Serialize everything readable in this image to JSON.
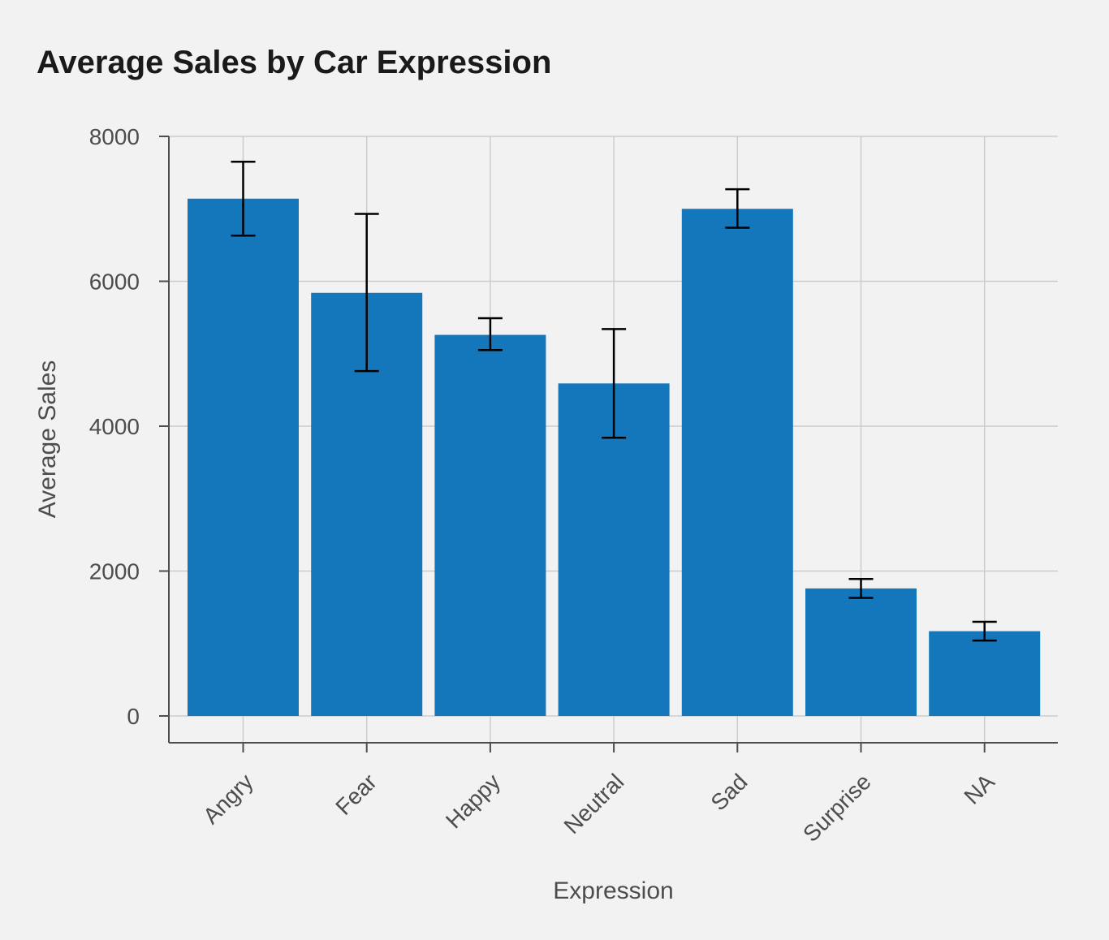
{
  "chart_data": {
    "type": "bar",
    "title": "Average Sales by Car Expression",
    "xlabel": "Expression",
    "ylabel": "Average Sales",
    "categories": [
      "Angry",
      "Fear",
      "Happy",
      "Neutral",
      "Sad",
      "Surprise",
      "NA"
    ],
    "values": [
      7140,
      5840,
      5260,
      4590,
      7000,
      1760,
      1170
    ],
    "error_low": [
      6630,
      4760,
      5050,
      3840,
      6740,
      1630,
      1040
    ],
    "error_high": [
      7650,
      6930,
      5490,
      5340,
      7270,
      1890,
      1300
    ],
    "ylim": [
      -370,
      8000
    ],
    "yticks": [
      0,
      2000,
      4000,
      6000,
      8000
    ],
    "grid": true,
    "colors": {
      "bar": "#1477bc",
      "errorbar": "#000000",
      "grid": "#cccccc",
      "axis": "#4d4d4d",
      "background": "#f2f2f2"
    }
  }
}
